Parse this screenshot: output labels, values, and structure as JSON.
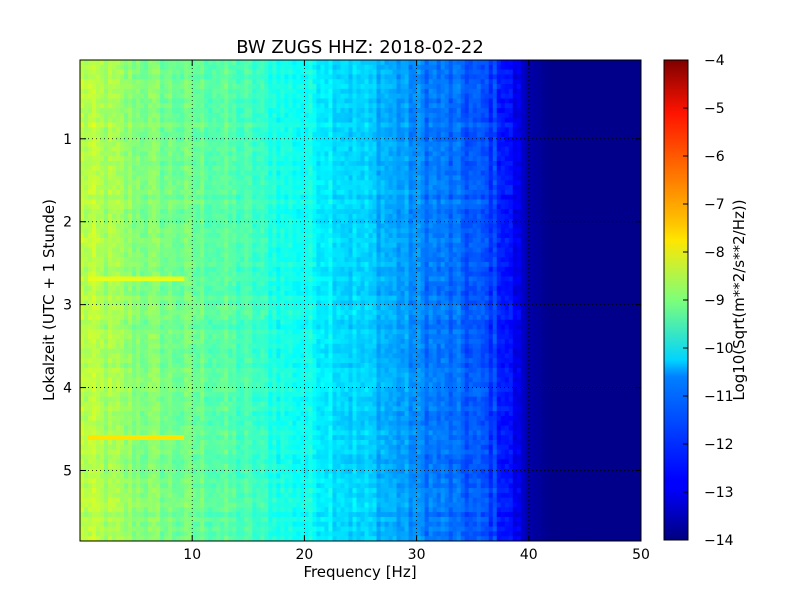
{
  "chart_data": {
    "type": "heatmap",
    "title": "BW ZUGS HHZ: 2018-02-22",
    "xlabel": "Frequency [Hz]",
    "ylabel": "Lokalzeit (UTC + 1 Stunde)",
    "xlim": [
      0,
      50
    ],
    "ylim": [
      5.85,
      0.05
    ],
    "y_inverted": true,
    "x_ticks": [
      10,
      20,
      30,
      40,
      50
    ],
    "y_ticks": [
      1,
      2,
      3,
      4,
      5
    ],
    "grid": true,
    "colormap": "jet",
    "colorbar": {
      "label": "Log10(Sqrt(m**2/s**2/Hz))",
      "range": [
        -14,
        -4
      ],
      "ticks": [
        -4,
        -5,
        -6,
        -7,
        -8,
        -9,
        -10,
        -11,
        -12,
        -13,
        -14
      ]
    },
    "spectrum_profile": {
      "frequencies": [
        0,
        2,
        5,
        8,
        10,
        12,
        15,
        18,
        20,
        22,
        24,
        26,
        28,
        30,
        32,
        34,
        36,
        37,
        38,
        39,
        40,
        42,
        50
      ],
      "log10_psd": [
        -8.4,
        -8.6,
        -8.9,
        -9.1,
        -9.2,
        -9.3,
        -9.6,
        -10.0,
        -10.1,
        -10.3,
        -10.6,
        -10.8,
        -11.1,
        -11.4,
        -11.6,
        -11.8,
        -12.0,
        -12.2,
        -12.5,
        -13.0,
        -13.6,
        -13.9,
        -13.9
      ]
    },
    "highlighted_bands": [
      {
        "time": 2.65,
        "freq_range": [
          0.5,
          9
        ],
        "log10_psd": -8.0
      },
      {
        "time": 4.58,
        "freq_range": [
          0.5,
          9
        ],
        "log10_psd": -7.5
      }
    ]
  }
}
